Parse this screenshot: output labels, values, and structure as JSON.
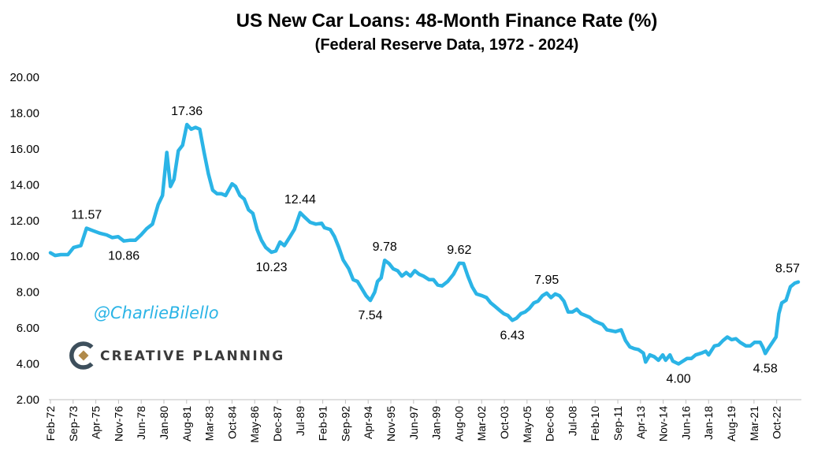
{
  "chart_data": {
    "type": "line",
    "title": "US New Car Loans: 48-Month Finance Rate (%)",
    "subtitle": "(Federal Reserve Data, 1972 - 2024)",
    "xlabel": "",
    "ylabel": "",
    "ylim": [
      2,
      20
    ],
    "yticks": [
      "2.00",
      "4.00",
      "6.00",
      "8.00",
      "10.00",
      "12.00",
      "14.00",
      "16.00",
      "18.00",
      "20.00"
    ],
    "x_tick_labels": [
      "Feb-72",
      "Sep-73",
      "Apr-75",
      "Nov-76",
      "Jun-78",
      "Jan-80",
      "Aug-81",
      "Mar-83",
      "Oct-84",
      "May-86",
      "Dec-87",
      "Jul-89",
      "Feb-91",
      "Sep-92",
      "Apr-94",
      "Nov-95",
      "Jun-97",
      "Jan-99",
      "Aug-00",
      "Mar-02",
      "Oct-03",
      "May-05",
      "Dec-06",
      "Jul-08",
      "Feb-10",
      "Sep-11",
      "Apr-13",
      "Nov-14",
      "Jun-16",
      "Jan-18",
      "Aug-19",
      "Mar-21",
      "Oct-22"
    ],
    "grid": false,
    "legend": "none",
    "line_color": "#2bb4e6",
    "series": [
      {
        "points": [
          [
            1972.08,
            10.2
          ],
          [
            1972.4,
            10.05
          ],
          [
            1972.8,
            10.1
          ],
          [
            1973.3,
            10.1
          ],
          [
            1973.7,
            10.5
          ],
          [
            1974.2,
            10.6
          ],
          [
            1974.6,
            11.57
          ],
          [
            1975.0,
            11.45
          ],
          [
            1975.5,
            11.3
          ],
          [
            1976.0,
            11.2
          ],
          [
            1976.4,
            11.05
          ],
          [
            1976.8,
            11.1
          ],
          [
            1977.2,
            10.86
          ],
          [
            1977.6,
            10.9
          ],
          [
            1978.0,
            10.9
          ],
          [
            1978.4,
            11.2
          ],
          [
            1978.8,
            11.55
          ],
          [
            1979.2,
            11.8
          ],
          [
            1979.6,
            12.9
          ],
          [
            1979.9,
            13.4
          ],
          [
            1980.2,
            15.8
          ],
          [
            1980.45,
            13.9
          ],
          [
            1980.7,
            14.3
          ],
          [
            1981.0,
            15.9
          ],
          [
            1981.3,
            16.2
          ],
          [
            1981.6,
            17.36
          ],
          [
            1981.9,
            17.1
          ],
          [
            1982.2,
            17.2
          ],
          [
            1982.5,
            17.1
          ],
          [
            1982.8,
            15.8
          ],
          [
            1983.1,
            14.6
          ],
          [
            1983.4,
            13.7
          ],
          [
            1983.7,
            13.5
          ],
          [
            1984.0,
            13.5
          ],
          [
            1984.3,
            13.4
          ],
          [
            1984.75,
            14.05
          ],
          [
            1985.0,
            13.9
          ],
          [
            1985.3,
            13.4
          ],
          [
            1985.6,
            13.2
          ],
          [
            1985.9,
            12.6
          ],
          [
            1986.2,
            12.4
          ],
          [
            1986.5,
            11.5
          ],
          [
            1986.8,
            10.9
          ],
          [
            1987.1,
            10.5
          ],
          [
            1987.5,
            10.23
          ],
          [
            1987.8,
            10.3
          ],
          [
            1988.1,
            10.8
          ],
          [
            1988.4,
            10.6
          ],
          [
            1988.8,
            11.1
          ],
          [
            1989.1,
            11.5
          ],
          [
            1989.5,
            12.44
          ],
          [
            1989.8,
            12.2
          ],
          [
            1990.2,
            11.9
          ],
          [
            1990.6,
            11.8
          ],
          [
            1991.0,
            11.85
          ],
          [
            1991.2,
            11.6
          ],
          [
            1991.6,
            11.5
          ],
          [
            1991.9,
            11.1
          ],
          [
            1992.2,
            10.5
          ],
          [
            1992.5,
            9.8
          ],
          [
            1992.9,
            9.3
          ],
          [
            1993.2,
            8.7
          ],
          [
            1993.5,
            8.6
          ],
          [
            1993.8,
            8.2
          ],
          [
            1994.1,
            7.8
          ],
          [
            1994.4,
            7.54
          ],
          [
            1994.7,
            8.0
          ],
          [
            1994.9,
            8.6
          ],
          [
            1995.15,
            8.8
          ],
          [
            1995.4,
            9.78
          ],
          [
            1995.7,
            9.6
          ],
          [
            1996.0,
            9.3
          ],
          [
            1996.3,
            9.2
          ],
          [
            1996.6,
            8.9
          ],
          [
            1996.9,
            9.1
          ],
          [
            1997.2,
            8.9
          ],
          [
            1997.5,
            9.2
          ],
          [
            1997.8,
            9.0
          ],
          [
            1998.1,
            8.9
          ],
          [
            1998.5,
            8.7
          ],
          [
            1998.8,
            8.7
          ],
          [
            1999.1,
            8.4
          ],
          [
            1999.4,
            8.35
          ],
          [
            1999.8,
            8.6
          ],
          [
            2000.2,
            9.0
          ],
          [
            2000.6,
            9.62
          ],
          [
            2000.9,
            9.6
          ],
          [
            2001.2,
            8.9
          ],
          [
            2001.5,
            8.3
          ],
          [
            2001.8,
            7.9
          ],
          [
            2002.2,
            7.8
          ],
          [
            2002.5,
            7.7
          ],
          [
            2002.8,
            7.4
          ],
          [
            2003.1,
            7.2
          ],
          [
            2003.4,
            7.0
          ],
          [
            2003.7,
            6.8
          ],
          [
            2004.0,
            6.7
          ],
          [
            2004.3,
            6.43
          ],
          [
            2004.6,
            6.55
          ],
          [
            2004.9,
            6.8
          ],
          [
            2005.2,
            6.9
          ],
          [
            2005.5,
            7.1
          ],
          [
            2005.8,
            7.4
          ],
          [
            2006.1,
            7.5
          ],
          [
            2006.4,
            7.8
          ],
          [
            2006.7,
            7.95
          ],
          [
            2007.0,
            7.7
          ],
          [
            2007.3,
            7.9
          ],
          [
            2007.6,
            7.8
          ],
          [
            2007.9,
            7.5
          ],
          [
            2008.2,
            6.9
          ],
          [
            2008.5,
            6.9
          ],
          [
            2008.8,
            7.05
          ],
          [
            2009.1,
            6.8
          ],
          [
            2009.4,
            6.7
          ],
          [
            2009.7,
            6.6
          ],
          [
            2010.0,
            6.4
          ],
          [
            2010.3,
            6.3
          ],
          [
            2010.6,
            6.2
          ],
          [
            2010.9,
            5.9
          ],
          [
            2011.2,
            5.85
          ],
          [
            2011.5,
            5.8
          ],
          [
            2011.9,
            5.9
          ],
          [
            2012.2,
            5.3
          ],
          [
            2012.5,
            4.95
          ],
          [
            2012.8,
            4.85
          ],
          [
            2013.1,
            4.8
          ],
          [
            2013.45,
            4.6
          ],
          [
            2013.6,
            4.1
          ],
          [
            2013.9,
            4.5
          ],
          [
            2014.2,
            4.4
          ],
          [
            2014.5,
            4.2
          ],
          [
            2014.8,
            4.5
          ],
          [
            2015.0,
            4.2
          ],
          [
            2015.3,
            4.5
          ],
          [
            2015.5,
            4.15
          ],
          [
            2015.9,
            4.0
          ],
          [
            2016.2,
            4.15
          ],
          [
            2016.5,
            4.3
          ],
          [
            2016.8,
            4.3
          ],
          [
            2017.1,
            4.5
          ],
          [
            2017.5,
            4.6
          ],
          [
            2017.8,
            4.7
          ],
          [
            2018.0,
            4.5
          ],
          [
            2018.4,
            5.0
          ],
          [
            2018.7,
            5.05
          ],
          [
            2019.0,
            5.3
          ],
          [
            2019.3,
            5.5
          ],
          [
            2019.6,
            5.35
          ],
          [
            2019.9,
            5.4
          ],
          [
            2020.2,
            5.2
          ],
          [
            2020.6,
            5.0
          ],
          [
            2020.9,
            5.0
          ],
          [
            2021.2,
            5.2
          ],
          [
            2021.6,
            5.2
          ],
          [
            2021.8,
            4.9
          ],
          [
            2021.95,
            4.58
          ],
          [
            2022.2,
            4.9
          ],
          [
            2022.45,
            5.2
          ],
          [
            2022.7,
            5.5
          ],
          [
            2022.9,
            6.8
          ],
          [
            2023.1,
            7.4
          ],
          [
            2023.4,
            7.55
          ],
          [
            2023.7,
            8.3
          ],
          [
            2024.0,
            8.5
          ],
          [
            2024.25,
            8.57
          ]
        ]
      }
    ],
    "annotations": [
      {
        "label": "11.57",
        "x": 1974.6,
        "y": 11.57
      },
      {
        "label": "10.86",
        "x": 1977.2,
        "y": 10.86
      },
      {
        "label": "17.36",
        "x": 1981.6,
        "y": 17.36
      },
      {
        "label": "10.23",
        "x": 1987.5,
        "y": 10.23
      },
      {
        "label": "12.44",
        "x": 1989.5,
        "y": 12.44
      },
      {
        "label": "7.54",
        "x": 1994.4,
        "y": 7.54
      },
      {
        "label": "9.78",
        "x": 1995.4,
        "y": 9.78
      },
      {
        "label": "9.62",
        "x": 2000.6,
        "y": 9.62
      },
      {
        "label": "6.43",
        "x": 2004.3,
        "y": 6.43
      },
      {
        "label": "7.95",
        "x": 2006.7,
        "y": 7.95
      },
      {
        "label": "4.00",
        "x": 2015.9,
        "y": 4.0
      },
      {
        "label": "4.58",
        "x": 2021.95,
        "y": 4.58
      },
      {
        "label": "8.57",
        "x": 2024.25,
        "y": 8.57
      }
    ]
  },
  "watermark": {
    "handle": "@CharlieBilello",
    "brand": "CREATIVE PLANNING",
    "logo_icon": "creative-planning-logo-icon",
    "brand_colors": {
      "c": "#3d4f5c",
      "diamond": "#b08a4a"
    }
  }
}
